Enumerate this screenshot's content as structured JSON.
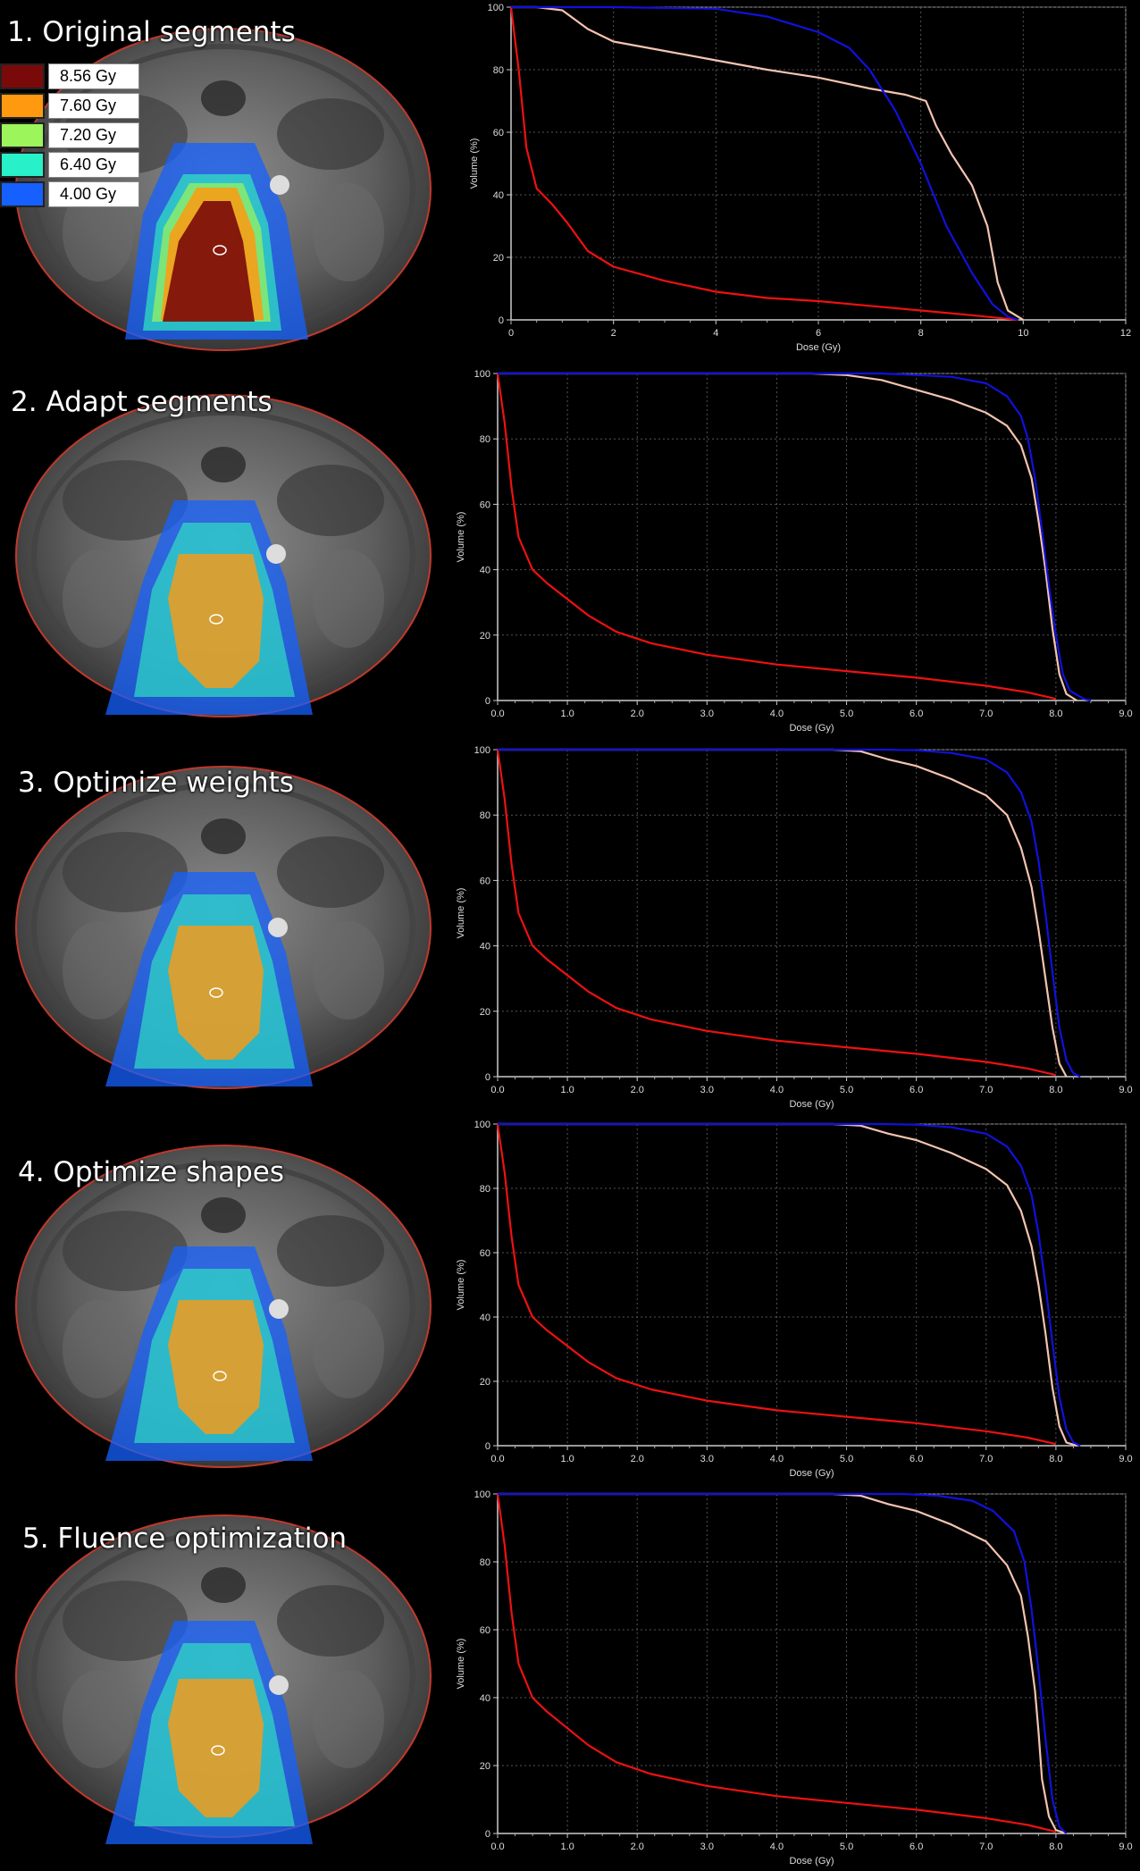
{
  "legend": [
    {
      "label": "8.56 Gy",
      "color": "#7a0a0a"
    },
    {
      "label": "7.60 Gy",
      "color": "#ff9a10"
    },
    {
      "label": "7.20 Gy",
      "color": "#9cf55a"
    },
    {
      "label": "6.40 Gy",
      "color": "#28f0c8"
    },
    {
      "label": "4.00 Gy",
      "color": "#1560ff"
    }
  ],
  "steps": [
    {
      "title": "1. Original segments"
    },
    {
      "title": "2. Adapt segments"
    },
    {
      "title": "3. Optimize weights"
    },
    {
      "title": "4. Optimize shapes"
    },
    {
      "title": "5. Fluence optimization"
    }
  ],
  "chart_data": [
    {
      "type": "line",
      "xlabel": "Dose (Gy)",
      "ylabel": "Volume (%)",
      "xlim": [
        0,
        12
      ],
      "ylim": [
        0,
        100
      ],
      "xticks": [
        "0",
        "2",
        "4",
        "6",
        "8",
        "10",
        "12"
      ],
      "yticks": [
        "0",
        "20",
        "40",
        "60",
        "80",
        "100"
      ],
      "grid": true,
      "series": [
        {
          "color": "#ee1111",
          "x": [
            0,
            0.15,
            0.3,
            0.5,
            0.8,
            1.1,
            1.5,
            2.0,
            3.0,
            4.0,
            5.0,
            6.0,
            7.0,
            8.0,
            9.0,
            9.6,
            9.9
          ],
          "y": [
            100,
            80,
            55,
            42,
            37,
            31,
            22,
            17,
            12.5,
            9,
            7,
            6,
            4.5,
            3,
            1.5,
            0.5,
            0
          ]
        },
        {
          "color": "#f4c4b0",
          "x": [
            0,
            0.5,
            1.0,
            1.5,
            2.0,
            3.0,
            4.0,
            5.0,
            6.0,
            7.0,
            7.7,
            8.1,
            8.3,
            8.6,
            9.0,
            9.3,
            9.5,
            9.7,
            10.0
          ],
          "y": [
            100,
            100,
            99,
            93,
            89,
            86,
            83,
            80,
            77.5,
            74,
            72,
            70,
            62,
            53,
            43,
            30,
            12,
            3,
            0
          ]
        },
        {
          "color": "#1111dd",
          "x": [
            0,
            2.0,
            4.0,
            5.0,
            6.0,
            6.6,
            7.0,
            7.5,
            8.0,
            8.5,
            9.0,
            9.4,
            9.7,
            9.9
          ],
          "y": [
            100,
            100,
            99.5,
            97,
            92,
            87,
            80,
            67,
            50,
            30,
            15,
            5,
            1,
            0
          ]
        }
      ]
    },
    {
      "type": "line",
      "xlabel": "Dose (Gy)",
      "ylabel": "Volume (%)",
      "xlim": [
        0,
        9
      ],
      "ylim": [
        0,
        100
      ],
      "xticks": [
        "0.0",
        "1.0",
        "2.0",
        "3.0",
        "4.0",
        "5.0",
        "6.0",
        "7.0",
        "8.0",
        "9.0"
      ],
      "yticks": [
        "0",
        "20",
        "40",
        "60",
        "80",
        "100"
      ],
      "grid": true,
      "series": [
        {
          "color": "#ee1111",
          "x": [
            0,
            0.1,
            0.2,
            0.3,
            0.5,
            0.7,
            1.0,
            1.3,
            1.7,
            2.2,
            3.0,
            4.0,
            5.0,
            6.0,
            7.0,
            7.6,
            8.0
          ],
          "y": [
            100,
            85,
            65,
            50,
            40,
            36,
            31,
            26,
            21,
            17.5,
            14,
            11,
            9,
            7,
            4.5,
            2.5,
            0.5
          ]
        },
        {
          "color": "#f4c4b0",
          "x": [
            0,
            4.5,
            5.0,
            5.5,
            6.0,
            6.5,
            7.0,
            7.3,
            7.5,
            7.65,
            7.75,
            7.85,
            7.95,
            8.05,
            8.15,
            8.3
          ],
          "y": [
            100,
            100,
            99.5,
            98,
            95,
            92,
            88,
            84,
            78,
            68,
            55,
            40,
            22,
            8,
            2,
            0
          ]
        },
        {
          "color": "#1111dd",
          "x": [
            0,
            5.5,
            6.0,
            6.5,
            7.0,
            7.3,
            7.5,
            7.6,
            7.7,
            7.8,
            7.9,
            8.0,
            8.1,
            8.2,
            8.4,
            8.5
          ],
          "y": [
            100,
            100,
            99.5,
            99,
            97,
            93,
            87,
            80,
            68,
            52,
            35,
            20,
            8,
            3,
            0.5,
            0
          ]
        }
      ]
    },
    {
      "type": "line",
      "xlabel": "Dose (Gy)",
      "ylabel": "Volume (%)",
      "xlim": [
        0,
        9
      ],
      "ylim": [
        0,
        100
      ],
      "xticks": [
        "0.0",
        "1.0",
        "2.0",
        "3.0",
        "4.0",
        "5.0",
        "6.0",
        "7.0",
        "8.0",
        "9.0"
      ],
      "yticks": [
        "0",
        "20",
        "40",
        "60",
        "80",
        "100"
      ],
      "grid": true,
      "series": [
        {
          "color": "#ee1111",
          "x": [
            0,
            0.1,
            0.2,
            0.3,
            0.5,
            0.7,
            1.0,
            1.3,
            1.7,
            2.2,
            3.0,
            4.0,
            5.0,
            6.0,
            7.0,
            7.6,
            8.0
          ],
          "y": [
            100,
            85,
            65,
            50,
            40,
            36,
            31,
            26,
            21,
            17.5,
            14,
            11,
            9,
            7,
            4.5,
            2.5,
            0.5
          ]
        },
        {
          "color": "#f4c4b0",
          "x": [
            0,
            4.8,
            5.2,
            5.6,
            6.0,
            6.5,
            7.0,
            7.3,
            7.5,
            7.65,
            7.75,
            7.85,
            7.95,
            8.05,
            8.15
          ],
          "y": [
            100,
            100,
            99.5,
            97,
            95,
            91,
            86,
            80,
            70,
            58,
            45,
            30,
            15,
            4,
            0
          ]
        },
        {
          "color": "#1111dd",
          "x": [
            0,
            5.5,
            6.0,
            6.5,
            7.0,
            7.3,
            7.5,
            7.65,
            7.75,
            7.85,
            7.95,
            8.05,
            8.15,
            8.25,
            8.35
          ],
          "y": [
            100,
            100,
            99.8,
            99,
            97,
            93,
            87,
            78,
            66,
            50,
            32,
            15,
            5,
            1,
            0
          ]
        }
      ]
    },
    {
      "type": "line",
      "xlabel": "Dose (Gy)",
      "ylabel": "Volume (%)",
      "xlim": [
        0,
        9
      ],
      "ylim": [
        0,
        100
      ],
      "xticks": [
        "0.0",
        "1.0",
        "2.0",
        "3.0",
        "4.0",
        "5.0",
        "6.0",
        "7.0",
        "8.0",
        "9.0"
      ],
      "yticks": [
        "0",
        "20",
        "40",
        "60",
        "80",
        "100"
      ],
      "grid": true,
      "series": [
        {
          "color": "#ee1111",
          "x": [
            0,
            0.1,
            0.2,
            0.3,
            0.5,
            0.7,
            1.0,
            1.3,
            1.7,
            2.2,
            3.0,
            4.0,
            5.0,
            6.0,
            7.0,
            7.6,
            8.0
          ],
          "y": [
            100,
            85,
            65,
            50,
            40,
            36,
            31,
            26,
            21,
            17.5,
            14,
            11,
            9,
            7,
            4.5,
            2.5,
            0.5
          ]
        },
        {
          "color": "#f4c4b0",
          "x": [
            0,
            4.8,
            5.2,
            5.6,
            6.0,
            6.5,
            7.0,
            7.3,
            7.5,
            7.65,
            7.75,
            7.85,
            7.95,
            8.05,
            8.15,
            8.3
          ],
          "y": [
            100,
            100,
            99.5,
            97,
            95,
            91,
            86,
            81,
            73,
            62,
            50,
            35,
            18,
            6,
            1,
            0
          ]
        },
        {
          "color": "#1111dd",
          "x": [
            0,
            5.5,
            6.0,
            6.5,
            7.0,
            7.3,
            7.5,
            7.65,
            7.75,
            7.85,
            7.95,
            8.05,
            8.15,
            8.25,
            8.35
          ],
          "y": [
            100,
            100,
            99.8,
            99,
            97,
            93,
            87,
            78,
            66,
            50,
            32,
            15,
            5,
            1,
            0
          ]
        }
      ]
    },
    {
      "type": "line",
      "xlabel": "Dose (Gy)",
      "ylabel": "Volume (%)",
      "xlim": [
        0,
        9
      ],
      "ylim": [
        0,
        100
      ],
      "xticks": [
        "0.0",
        "1.0",
        "2.0",
        "3.0",
        "4.0",
        "5.0",
        "6.0",
        "7.0",
        "8.0",
        "9.0"
      ],
      "yticks": [
        "0",
        "20",
        "40",
        "60",
        "80",
        "100"
      ],
      "grid": true,
      "series": [
        {
          "color": "#ee1111",
          "x": [
            0,
            0.1,
            0.2,
            0.3,
            0.5,
            0.7,
            1.0,
            1.3,
            1.7,
            2.2,
            3.0,
            4.0,
            5.0,
            6.0,
            7.0,
            7.6,
            8.0
          ],
          "y": [
            100,
            85,
            65,
            50,
            40,
            36,
            31,
            26,
            21,
            17.5,
            14,
            11,
            9,
            7,
            4.5,
            2.5,
            0.5
          ]
        },
        {
          "color": "#f4c4b0",
          "x": [
            0,
            4.8,
            5.2,
            5.6,
            6.0,
            6.5,
            7.0,
            7.3,
            7.5,
            7.6,
            7.7,
            7.75,
            7.8,
            7.9,
            8.0,
            8.15
          ],
          "y": [
            100,
            100,
            99.5,
            97,
            95,
            91,
            86,
            79,
            70,
            58,
            42,
            30,
            16,
            5,
            1,
            0
          ]
        },
        {
          "color": "#1111dd",
          "x": [
            0,
            5.8,
            6.3,
            6.8,
            7.1,
            7.4,
            7.55,
            7.65,
            7.75,
            7.85,
            7.95,
            8.05,
            8.15
          ],
          "y": [
            100,
            100,
            99.5,
            98,
            95,
            89,
            80,
            66,
            48,
            28,
            10,
            2,
            0
          ]
        }
      ]
    }
  ]
}
